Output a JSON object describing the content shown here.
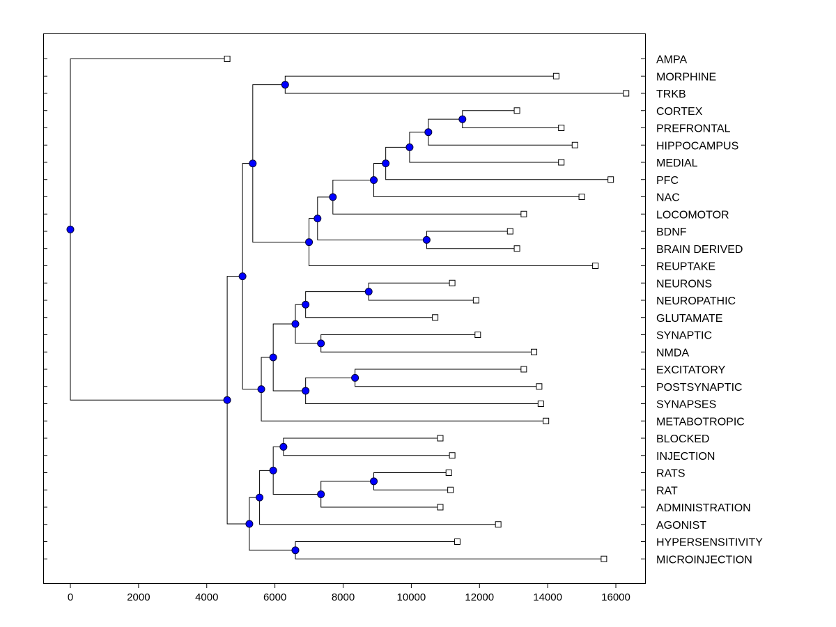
{
  "chart_data": {
    "type": "dendrogram",
    "title": "",
    "xlabel": "",
    "ylabel": "",
    "xlim": [
      -800,
      17300
    ],
    "x_ticks": [
      0,
      2000,
      4000,
      6000,
      8000,
      10000,
      12000,
      14000,
      16000
    ],
    "leaves": [
      {
        "label": "AMPA",
        "value": 4600
      },
      {
        "label": "MORPHINE",
        "value": 14250
      },
      {
        "label": "TRKB",
        "value": 16300
      },
      {
        "label": "CORTEX",
        "value": 13100
      },
      {
        "label": "PREFRONTAL",
        "value": 14400
      },
      {
        "label": "HIPPOCAMPUS",
        "value": 14800
      },
      {
        "label": "MEDIAL",
        "value": 14400
      },
      {
        "label": "PFC",
        "value": 15850
      },
      {
        "label": "NAC",
        "value": 15000
      },
      {
        "label": "LOCOMOTOR",
        "value": 13300
      },
      {
        "label": "BDNF",
        "value": 12900
      },
      {
        "label": "BRAIN DERIVED",
        "value": 13100
      },
      {
        "label": "REUPTAKE",
        "value": 15400
      },
      {
        "label": "NEURONS",
        "value": 11200
      },
      {
        "label": "NEUROPATHIC",
        "value": 11900
      },
      {
        "label": "GLUTAMATE",
        "value": 10700
      },
      {
        "label": "SYNAPTIC",
        "value": 11950
      },
      {
        "label": "NMDA",
        "value": 13600
      },
      {
        "label": "EXCITATORY",
        "value": 13300
      },
      {
        "label": "POSTSYNAPTIC",
        "value": 13750
      },
      {
        "label": "SYNAPSES",
        "value": 13800
      },
      {
        "label": "METABOTROPIC",
        "value": 13950
      },
      {
        "label": "BLOCKED",
        "value": 10850
      },
      {
        "label": "INJECTION",
        "value": 11200
      },
      {
        "label": "RATS",
        "value": 11100
      },
      {
        "label": "RAT",
        "value": 11150
      },
      {
        "label": "ADMINISTRATION",
        "value": 10850
      },
      {
        "label": "AGONIST",
        "value": 12550
      },
      {
        "label": "HYPERSENSITIVITY",
        "value": 11350
      },
      {
        "label": "MICROINJECTION",
        "value": 15650
      }
    ],
    "nodes": [
      {
        "id": "n1",
        "value": 0,
        "children": [
          "L0",
          "n2"
        ]
      },
      {
        "id": "n2",
        "value": 4600,
        "children": [
          "n3",
          "n20"
        ]
      },
      {
        "id": "n3",
        "value": 5050,
        "children": [
          "n4",
          "n12"
        ]
      },
      {
        "id": "n4",
        "value": 5350,
        "children": [
          "n5",
          "n6"
        ]
      },
      {
        "id": "n5",
        "value": 6300,
        "children": [
          "L1",
          "L2"
        ]
      },
      {
        "id": "n6",
        "value": 7000,
        "children": [
          "n7",
          "L12"
        ]
      },
      {
        "id": "n7",
        "value": 7250,
        "children": [
          "n8",
          "n11"
        ]
      },
      {
        "id": "n8",
        "value": 7700,
        "children": [
          "n9",
          "L9"
        ]
      },
      {
        "id": "n9",
        "value": 8900,
        "children": [
          "n10",
          "L8"
        ]
      },
      {
        "id": "n10",
        "value": 9250,
        "children": [
          "n10a",
          "L7"
        ]
      },
      {
        "id": "n10a",
        "value": 9950,
        "children": [
          "n10b",
          "L6"
        ]
      },
      {
        "id": "n10b",
        "value": 10500,
        "children": [
          "n10c",
          "L5"
        ]
      },
      {
        "id": "n10c",
        "value": 11500,
        "children": [
          "L3",
          "L4"
        ]
      },
      {
        "id": "n11",
        "value": 10450,
        "children": [
          "L10",
          "L11"
        ]
      },
      {
        "id": "n12",
        "value": 5600,
        "children": [
          "n13",
          "L21"
        ]
      },
      {
        "id": "n13",
        "value": 5950,
        "children": [
          "n14",
          "n18"
        ]
      },
      {
        "id": "n14",
        "value": 6600,
        "children": [
          "n15",
          "n17"
        ]
      },
      {
        "id": "n15",
        "value": 6900,
        "children": [
          "n16",
          "L15"
        ]
      },
      {
        "id": "n16",
        "value": 8750,
        "children": [
          "L13",
          "L14"
        ]
      },
      {
        "id": "n17",
        "value": 7350,
        "children": [
          "L16",
          "L17"
        ]
      },
      {
        "id": "n18",
        "value": 6900,
        "children": [
          "n19",
          "L20"
        ]
      },
      {
        "id": "n19",
        "value": 8350,
        "children": [
          "L18",
          "L19"
        ]
      },
      {
        "id": "n20",
        "value": 5250,
        "children": [
          "n21",
          "n25"
        ]
      },
      {
        "id": "n21",
        "value": 5550,
        "children": [
          "n22",
          "L27"
        ]
      },
      {
        "id": "n22",
        "value": 5950,
        "children": [
          "n23",
          "n24"
        ]
      },
      {
        "id": "n23",
        "value": 6250,
        "children": [
          "L22",
          "L23"
        ]
      },
      {
        "id": "n24",
        "value": 7350,
        "children": [
          "n24a",
          "L26"
        ]
      },
      {
        "id": "n24a",
        "value": 8900,
        "children": [
          "L24",
          "L25"
        ]
      },
      {
        "id": "n25",
        "value": 6600,
        "children": [
          "L28",
          "L29"
        ]
      }
    ],
    "root": "n1",
    "colors": {
      "node_fill": "#0000ff",
      "edge": "#000000",
      "leaf_fill": "#ffffff"
    }
  }
}
